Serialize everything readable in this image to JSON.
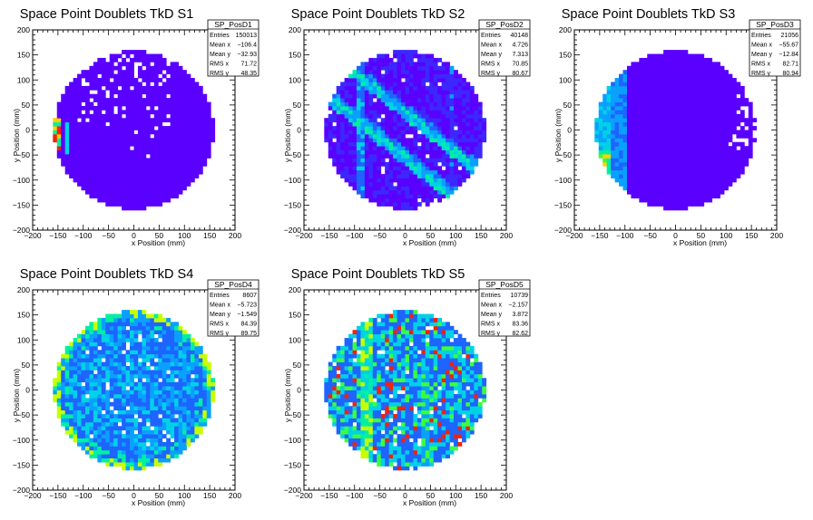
{
  "chart_data": [
    {
      "type": "heatmap",
      "title": "Space Point Doublets TkD S1",
      "xlabel": "x Position (mm)",
      "ylabel": "y Position (mm)",
      "xlim": [
        -200,
        200
      ],
      "ylim": [
        -200,
        200
      ],
      "xticks": [
        "−200",
        "−150",
        "−100",
        "−50",
        "0",
        "50",
        "100",
        "150",
        "200"
      ],
      "yticks": [
        "−200",
        "−150",
        "−100",
        "−50",
        "0",
        "50",
        "100",
        "150",
        "200"
      ],
      "pattern": "uniform-low with edge strip",
      "stats": {
        "name": "SP_PosD1",
        "rows": [
          {
            "label": "Entries",
            "value": "150013"
          },
          {
            "label": "Mean x",
            "value": "−106.4"
          },
          {
            "label": "Mean y",
            "value": "−32.93"
          },
          {
            "label": "RMS x",
            "value": "71.72"
          },
          {
            "label": "RMS y",
            "value": "48.35"
          }
        ]
      }
    },
    {
      "type": "heatmap",
      "title": "Space Point Doublets TkD S2",
      "xlabel": "x Position (mm)",
      "ylabel": "y Position (mm)",
      "xlim": [
        -200,
        200
      ],
      "ylim": [
        -200,
        200
      ],
      "xticks": [
        "−200",
        "−150",
        "−100",
        "−50",
        "0",
        "50",
        "100",
        "150",
        "200"
      ],
      "yticks": [
        "−200",
        "−150",
        "−100",
        "−50",
        "0",
        "50",
        "100",
        "150",
        "200"
      ],
      "pattern": "diagonal bands",
      "stats": {
        "name": "SP_PosD2",
        "rows": [
          {
            "label": "Entries",
            "value": "40148"
          },
          {
            "label": "Mean x",
            "value": "4.726"
          },
          {
            "label": "Mean y",
            "value": "7.313"
          },
          {
            "label": "RMS x",
            "value": "70.85"
          },
          {
            "label": "RMS y",
            "value": "80.67"
          }
        ]
      }
    },
    {
      "type": "heatmap",
      "title": "Space Point Doublets TkD S3",
      "xlabel": "x Position (mm)",
      "ylabel": "y Position (mm)",
      "xlim": [
        -200,
        200
      ],
      "ylim": [
        -200,
        200
      ],
      "xticks": [
        "−200",
        "−150",
        "−100",
        "−50",
        "0",
        "50",
        "100",
        "150",
        "200"
      ],
      "yticks": [
        "−200",
        "−150",
        "−100",
        "−50",
        "0",
        "50",
        "100",
        "150",
        "200"
      ],
      "pattern": "left edge arc",
      "stats": {
        "name": "SP_PosD3",
        "rows": [
          {
            "label": "Entries",
            "value": "21056"
          },
          {
            "label": "Mean x",
            "value": "−55.67"
          },
          {
            "label": "Mean y",
            "value": "−12.84"
          },
          {
            "label": "RMS x",
            "value": "82.71"
          },
          {
            "label": "RMS y",
            "value": "80.94"
          }
        ]
      }
    },
    {
      "type": "heatmap",
      "title": "Space Point Doublets TkD S4",
      "xlabel": "x Position (mm)",
      "ylabel": "y Position (mm)",
      "xlim": [
        -200,
        200
      ],
      "ylim": [
        -200,
        200
      ],
      "xticks": [
        "−200",
        "−150",
        "−100",
        "−50",
        "0",
        "50",
        "100",
        "150",
        "200"
      ],
      "yticks": [
        "−200",
        "−150",
        "−100",
        "−50",
        "0",
        "50",
        "100",
        "150",
        "200"
      ],
      "pattern": "speckled with warm rim",
      "stats": {
        "name": "SP_PosD4",
        "rows": [
          {
            "label": "Entries",
            "value": "8607"
          },
          {
            "label": "Mean x",
            "value": "−5.723"
          },
          {
            "label": "Mean y",
            "value": "−1.549"
          },
          {
            "label": "RMS x",
            "value": "84.39"
          },
          {
            "label": "RMS y",
            "value": "89.75"
          }
        ]
      }
    },
    {
      "type": "heatmap",
      "title": "Space Point Doublets TkD S5",
      "xlabel": "x Position (mm)",
      "ylabel": "y Position (mm)",
      "xlim": [
        -200,
        200
      ],
      "ylim": [
        -200,
        200
      ],
      "xticks": [
        "−200",
        "−150",
        "−100",
        "−50",
        "0",
        "50",
        "100",
        "150",
        "200"
      ],
      "yticks": [
        "−200",
        "−150",
        "−100",
        "−50",
        "0",
        "50",
        "100",
        "150",
        "200"
      ],
      "pattern": "speckled bright with vertical band",
      "stats": {
        "name": "SP_PosD5",
        "rows": [
          {
            "label": "Entries",
            "value": "10739"
          },
          {
            "label": "Mean x",
            "value": "−2.157"
          },
          {
            "label": "Mean y",
            "value": "3.872"
          },
          {
            "label": "RMS x",
            "value": "83.36"
          },
          {
            "label": "RMS y",
            "value": "82.62"
          }
        ]
      }
    }
  ],
  "colors": {
    "frame": "#000000",
    "background": "#ffffff",
    "palette": [
      "#5a00ff",
      "#3c28ff",
      "#1e64ff",
      "#0aa0ff",
      "#00d2e6",
      "#00f0a0",
      "#3cff3c",
      "#c8ff00",
      "#ffd200",
      "#ff7800",
      "#ff1e00"
    ]
  }
}
